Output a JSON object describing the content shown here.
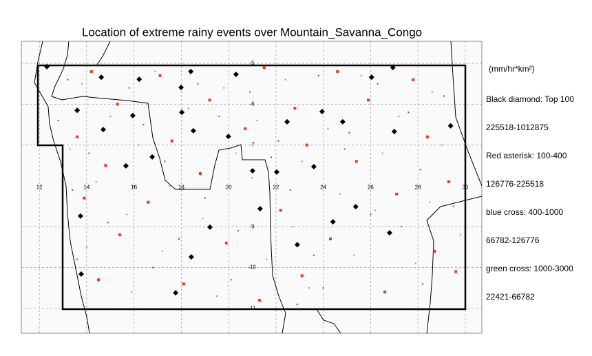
{
  "chart_data": {
    "type": "scatter",
    "title": "Location of extreme rainy events over Mountain_Savanna_Congo",
    "unit": "(mm/hr*km²)",
    "xlim": [
      11.24,
      30.7
    ],
    "ylim": [
      -11.61,
      -4.46
    ],
    "xticks": [
      12,
      14,
      16,
      18,
      20,
      22,
      24,
      26,
      28,
      30
    ],
    "yticks": [
      -5,
      -6,
      -7,
      -9,
      -10,
      -11
    ],
    "grid": true,
    "series": [
      {
        "name": "Black diamond: Top 100",
        "range": "225518-1012875",
        "color": "#000000",
        "marker": "diamond",
        "x": [
          12.32,
          14.62,
          16.22,
          18.4,
          17.99,
          20.31,
          13.6,
          14.7,
          15.95,
          18.02,
          18.51,
          19.99,
          22.47,
          23.95,
          24.82,
          27.0,
          29.38,
          15.66,
          16.77,
          21.01,
          22.03,
          23.6,
          25.37,
          24.41,
          22.9,
          26.8,
          21.33,
          19.21,
          18.42,
          17.76,
          13.77,
          13.74,
          26.94,
          26.04
        ],
        "values": [
          -5.08,
          -5.34,
          -5.39,
          -5.2,
          -5.59,
          -5.27,
          -6.15,
          -6.62,
          -6.28,
          -6.2,
          -6.65,
          -6.79,
          -6.43,
          -6.18,
          -6.43,
          -6.67,
          -6.53,
          -7.51,
          -7.29,
          -7.63,
          -7.66,
          -7.53,
          -8.51,
          -8.88,
          -9.44,
          -9.15,
          -8.56,
          -9.01,
          -9.74,
          -10.62,
          -10.16,
          -8.74,
          -5.1,
          -5.34
        ]
      },
      {
        "name": "Red asterisk: 100-400",
        "range": "126776-225518",
        "color": "#ee3322",
        "marker": "square",
        "x": [
          14.2,
          17.1,
          21.5,
          24.6,
          27.8,
          15.3,
          19.2,
          22.8,
          25.9,
          13.6,
          17.6,
          20.7,
          23.3,
          28.4,
          14.8,
          18.8,
          25.4,
          29.3,
          13.9,
          16.6,
          22.2,
          27.1,
          15.4,
          19.9,
          24.3,
          28.7,
          14.5,
          18.1,
          23.1,
          26.6,
          29.6,
          21.3
        ],
        "values": [
          -5.2,
          -5.3,
          -5.1,
          -5.2,
          -5.4,
          -6.0,
          -5.9,
          -6.1,
          -5.9,
          -6.8,
          -6.9,
          -6.6,
          -7.0,
          -6.8,
          -7.5,
          -7.7,
          -7.4,
          -7.9,
          -8.3,
          -8.4,
          -8.6,
          -8.2,
          -9.2,
          -9.4,
          -9.3,
          -9.6,
          -10.3,
          -10.4,
          -10.2,
          -10.6,
          -10.1,
          -10.8
        ]
      },
      {
        "name": "blue cross: 400-1000",
        "range": "66782-126776",
        "color": "#3355ee",
        "marker": "dot",
        "x": [
          13.2,
          15.8,
          18.7,
          20.9,
          23.8,
          26.3,
          29.1,
          12.8,
          16.4,
          19.6,
          22.1,
          25.1,
          27.6,
          14.1,
          17.3,
          21.8,
          24.9,
          28.1,
          13.4,
          16.0,
          19.0,
          22.6,
          26.0,
          29.5,
          14.9,
          17.9,
          20.4,
          23.6,
          27.3,
          13.6,
          16.8,
          20.1,
          24.0,
          28.2,
          22.9
        ],
        "values": [
          -5.4,
          -5.6,
          -5.5,
          -5.7,
          -5.3,
          -5.5,
          -5.8,
          -6.4,
          -6.5,
          -6.3,
          -6.9,
          -6.7,
          -6.2,
          -7.2,
          -7.4,
          -7.3,
          -7.1,
          -7.6,
          -8.1,
          -8.0,
          -8.3,
          -8.1,
          -8.7,
          -8.5,
          -8.9,
          -9.3,
          -9.1,
          -9.7,
          -9.0,
          -9.8,
          -10.0,
          -10.3,
          -10.5,
          -10.4,
          -10.9
        ]
      },
      {
        "name": "green cross: 1000-3000",
        "range": "22421-66782",
        "color": "#66bb55",
        "marker": "dot",
        "x": [
          13.8,
          16.9,
          19.8,
          22.4,
          25.6,
          28.6,
          15.0,
          18.3,
          21.2,
          24.2,
          27.2,
          13.3,
          16.2,
          20.3,
          23.1,
          26.5,
          29.0,
          14.4,
          17.5,
          21.0,
          24.7,
          28.5,
          15.7,
          18.9,
          22.7,
          26.2,
          29.8,
          14.0,
          17.2,
          21.6,
          25.3,
          27.9,
          15.9,
          19.5,
          23.4
        ],
        "values": [
          -5.5,
          -5.2,
          -5.6,
          -5.4,
          -5.3,
          -5.7,
          -6.3,
          -6.1,
          -6.4,
          -6.6,
          -6.3,
          -7.1,
          -7.0,
          -7.2,
          -7.4,
          -7.2,
          -7.0,
          -7.9,
          -8.0,
          -7.8,
          -8.2,
          -8.4,
          -8.7,
          -8.8,
          -9.0,
          -8.6,
          -9.2,
          -9.5,
          -9.6,
          -9.8,
          -9.7,
          -9.9,
          -10.6,
          -10.7,
          -10.5
        ]
      }
    ]
  }
}
